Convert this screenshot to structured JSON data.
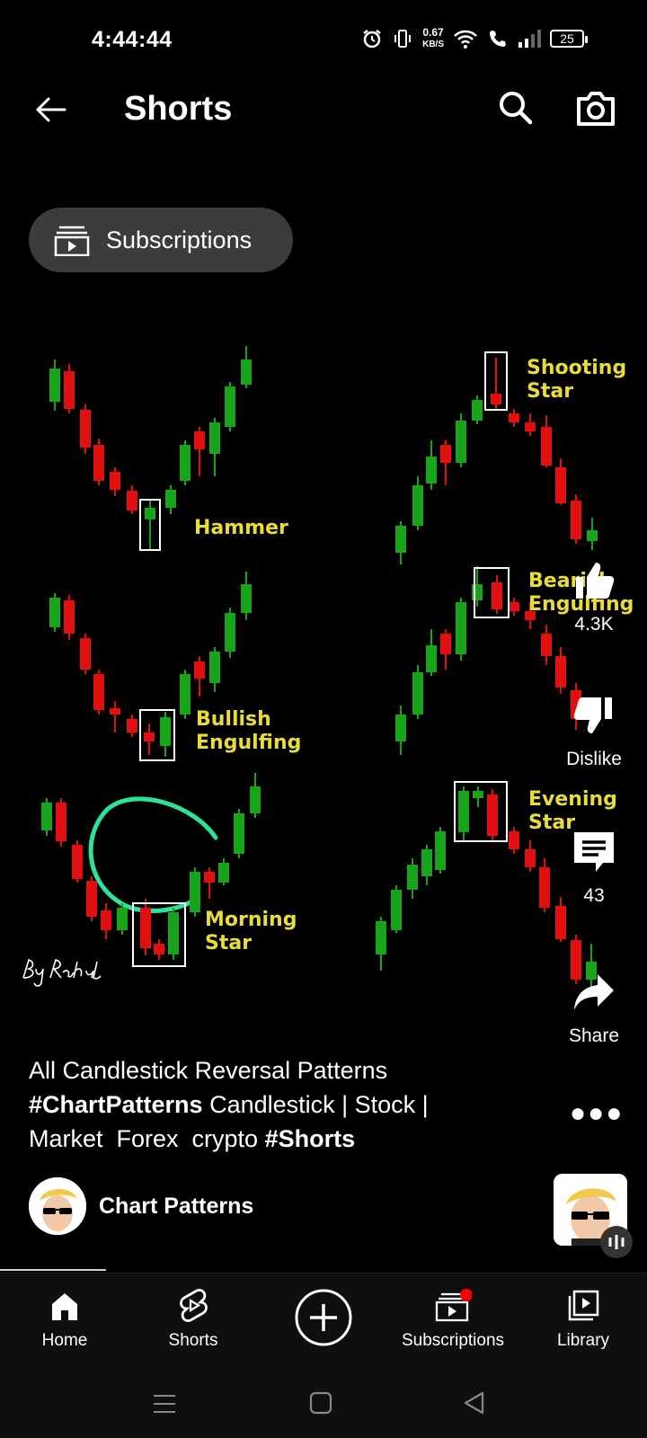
{
  "status_bar": {
    "time": "4:44:44",
    "net_speed_value": "0.67",
    "net_speed_unit": "KB/S",
    "battery": "25"
  },
  "header": {
    "title": "Shorts"
  },
  "chip": {
    "label": "Subscriptions"
  },
  "chart_patterns": {
    "labels": {
      "hammer": "Hammer",
      "bullish_1": "Bullish",
      "bullish_2": "Engulfing",
      "morning_1": "Morning",
      "morning_2": "Star",
      "shooting_1": "Shooting",
      "shooting_2": "Star",
      "bearish_1": "Bearish",
      "bearish_2": "Engulfing",
      "evening_1": "Evening",
      "evening_2": "Star"
    },
    "colors": {
      "bull": "#17a31a",
      "bear": "#e01010",
      "label": "#e8dc3a",
      "circle": "#2fe29a"
    }
  },
  "actions": {
    "likes": "4.3K",
    "dislike": "Dislike",
    "comments": "43",
    "share": "Share"
  },
  "description": {
    "line1": "All Candlestick Reversal Patterns",
    "tag1": "#ChartPatterns",
    "text2": " Candlestick | Stock |",
    "text3": "Market  Forex  crypto ",
    "tag2": "#Shorts"
  },
  "channel": {
    "name": "Chart Patterns"
  },
  "bottom_nav": {
    "home": "Home",
    "shorts": "Shorts",
    "subscriptions": "Subscriptions",
    "library": "Library"
  }
}
